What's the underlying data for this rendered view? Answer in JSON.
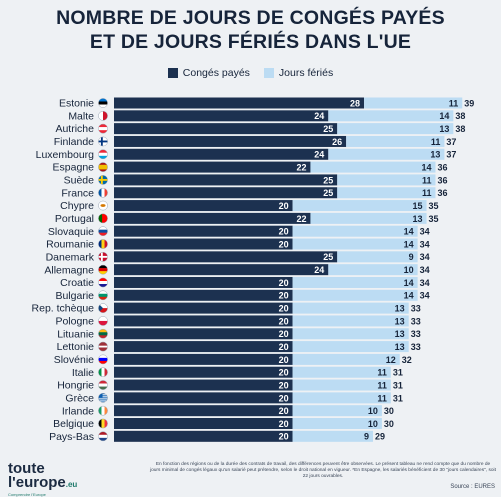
{
  "title_line1": "NOMBRE DE JOURS DE CONGÉS PAYÉS",
  "title_line2": "ET DE JOURS FÉRIÉS  DANS L'UE",
  "colors": {
    "paid_leave": "#1c3150",
    "public_holidays": "#bcdcf3",
    "background": "#eef1f4"
  },
  "chart_data": {
    "type": "bar",
    "orientation": "horizontal",
    "stacked": true,
    "legend_position": "top",
    "categories": [
      "Estonie",
      "Malte",
      "Autriche",
      "Finlande",
      "Luxembourg",
      "Espagne",
      "Suède",
      "France",
      "Chypre",
      "Portugal",
      "Slovaquie",
      "Roumanie",
      "Danemark",
      "Allemagne",
      "Croatie",
      "Bulgarie",
      "Rep. tchèque",
      "Pologne",
      "Lituanie",
      "Lettonie",
      "Slovénie",
      "Italie",
      "Hongrie",
      "Grèce",
      "Irlande",
      "Belgique",
      "Pays-Bas"
    ],
    "series": [
      {
        "name": "Congés payés",
        "values": [
          28,
          24,
          25,
          26,
          24,
          22,
          25,
          25,
          20,
          22,
          20,
          20,
          25,
          24,
          20,
          20,
          20,
          20,
          20,
          20,
          20,
          20,
          20,
          20,
          20,
          20,
          20
        ]
      },
      {
        "name": "Jours fériés",
        "values": [
          11,
          14,
          13,
          11,
          13,
          14,
          11,
          11,
          15,
          13,
          14,
          14,
          9,
          10,
          14,
          14,
          13,
          13,
          13,
          13,
          12,
          11,
          11,
          11,
          10,
          10,
          9
        ]
      }
    ],
    "totals": [
      39,
      38,
      38,
      37,
      37,
      36,
      36,
      36,
      35,
      35,
      34,
      34,
      34,
      34,
      34,
      34,
      33,
      33,
      33,
      33,
      32,
      31,
      31,
      31,
      30,
      30,
      29
    ],
    "flags": [
      "estonia-flag",
      "malta-flag",
      "austria-flag",
      "finland-flag",
      "luxembourg-flag",
      "spain-flag",
      "sweden-flag",
      "france-flag",
      "cyprus-flag",
      "portugal-flag",
      "slovakia-flag",
      "romania-flag",
      "denmark-flag",
      "germany-flag",
      "croatia-flag",
      "bulgaria-flag",
      "czechia-flag",
      "poland-flag",
      "lithuania-flag",
      "latvia-flag",
      "slovenia-flag",
      "italy-flag",
      "hungary-flag",
      "greece-flag",
      "ireland-flag",
      "belgium-flag",
      "netherlands-flag"
    ]
  },
  "brand": {
    "line1": "toute",
    "line2": "l'europe",
    "suffix": ".eu",
    "tagline": "Comprendre l'Europe"
  },
  "footnote": "En fonction des régions ou de la durée des contrats de travail, des différences peuvent être observées. Le présent tableau ne rend compte que du nombre de jours minimal de congés légaux qu'un salarié peut prétendre, selon le droit national en vigueur. *En Espagne, les salariés bénéficient de 30 \"jours calendaires\", soit 22 jours ouvrables.",
  "source": "Source : EURES"
}
